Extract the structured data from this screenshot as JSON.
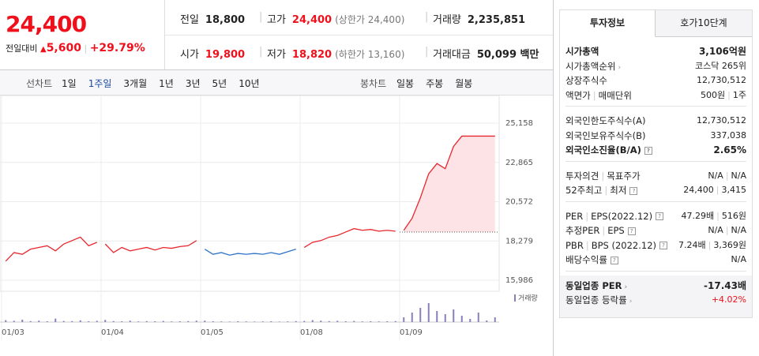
{
  "quote": {
    "price": "24,400",
    "change_label": "전일대비",
    "change": "5,600",
    "rate": "+29.79%"
  },
  "summary": [
    [
      {
        "label": "전일",
        "value": "18,800"
      },
      {
        "label": "고가",
        "value": "24,400",
        "note": "(상한가 24,400)"
      },
      {
        "label": "거래량",
        "value": "2,235,851"
      }
    ],
    [
      {
        "label": "시가",
        "value": "19,800"
      },
      {
        "label": "저가",
        "value": "18,820",
        "note": "(하한가 13,160)"
      },
      {
        "label": "거래대금",
        "value": "50,099 백만"
      }
    ]
  ],
  "periods": {
    "line_label": "선차트",
    "line": [
      "1일",
      "1주일",
      "3개월",
      "1년",
      "3년",
      "5년",
      "10년"
    ],
    "line_selected": 1,
    "candle_label": "봉차트",
    "candle": [
      "일봉",
      "주봉",
      "월봉"
    ]
  },
  "chart_data": {
    "type": "line",
    "x": [
      "01/03",
      "01/04",
      "01/05",
      "01/08",
      "01/09"
    ],
    "segments": [
      {
        "color": "#e8262d",
        "values": [
          17100,
          17600,
          17500,
          17800,
          17900,
          18000,
          17700,
          18100,
          18300,
          18500,
          18000,
          18200
        ]
      },
      {
        "color": "#e8262d",
        "values": [
          18100,
          17600,
          17900,
          17700,
          17800,
          17900,
          17750,
          17900,
          17850,
          17950,
          18000,
          18300
        ]
      },
      {
        "color": "#2f74c9",
        "values": [
          17800,
          17500,
          17600,
          17450,
          17550,
          17500,
          17550,
          17500,
          17600,
          17500,
          17650,
          17800
        ]
      },
      {
        "color": "#e8262d",
        "values": [
          17900,
          18200,
          18300,
          18500,
          18600,
          18800,
          19000,
          18900,
          18950,
          18850,
          18900,
          18850
        ]
      },
      {
        "color": "#e8262d",
        "values": [
          18900,
          19600,
          20800,
          22200,
          22800,
          22500,
          23800,
          24400,
          24400,
          24400,
          24400,
          24400
        ]
      }
    ],
    "reference": 18800,
    "fill_color": "#fde3e5",
    "ylim": [
      15986,
      25158
    ],
    "yticks": [
      {
        "value": 25158,
        "label": "25,158"
      },
      {
        "value": 22865,
        "label": "22,865"
      },
      {
        "value": 20572,
        "label": "20,572"
      },
      {
        "value": 18279,
        "label": "18,279"
      },
      {
        "value": 15986,
        "label": "15,986"
      }
    ],
    "grid": true,
    "volume": {
      "name": "거래량",
      "color": "#8a7fb8",
      "vlim": [
        0,
        200000
      ],
      "values": [
        [
          12000,
          8000,
          15000,
          6000,
          9000,
          5000,
          22000,
          7000,
          6000,
          11000,
          5000,
          8000
        ],
        [
          14000,
          6000,
          5000,
          9000,
          4000,
          6000,
          5000,
          7000,
          4000,
          5000,
          6000,
          9000
        ],
        [
          9000,
          5000,
          4000,
          3000,
          5000,
          4000,
          3000,
          4000,
          5000,
          3000,
          4000,
          6000
        ],
        [
          7000,
          12000,
          9000,
          6000,
          8000,
          5000,
          7000,
          4000,
          5000,
          4000,
          5000,
          6000
        ],
        [
          30000,
          60000,
          90000,
          120000,
          70000,
          50000,
          80000,
          40000,
          20000,
          60000,
          10000,
          30000
        ]
      ]
    }
  },
  "info": {
    "tabs": [
      "투자정보",
      "호가10단계"
    ],
    "groups": [
      [
        {
          "labels": [
            "시가총액"
          ],
          "values": [
            "3,106억원"
          ],
          "style": "bold"
        },
        {
          "labels": [
            "시가총액순위"
          ],
          "values": [
            "코스닥 265위"
          ],
          "arrow": true
        },
        {
          "labels": [
            "상장주식수"
          ],
          "values": [
            "12,730,512"
          ]
        },
        {
          "labels": [
            "액면가",
            "매매단위"
          ],
          "values": [
            "500원",
            "1주"
          ]
        }
      ],
      [
        {
          "labels": [
            "외국인한도주식수(A)"
          ],
          "values": [
            "12,730,512"
          ]
        },
        {
          "labels": [
            "외국인보유주식수(B)"
          ],
          "values": [
            "337,038"
          ]
        },
        {
          "labels": [
            "외국인소진율(B/A)"
          ],
          "values": [
            "2.65%"
          ],
          "style": "bold",
          "help": true
        }
      ],
      [
        {
          "labels": [
            "투자의견",
            "목표주가"
          ],
          "values": [
            "N/A",
            "N/A"
          ]
        },
        {
          "labels": [
            "52주최고",
            "최저"
          ],
          "values": [
            "24,400",
            "3,415"
          ],
          "help": true
        }
      ],
      [
        {
          "labels": [
            "PER",
            "EPS(2022.12)"
          ],
          "values": [
            "47.29배",
            "516원"
          ],
          "help": true
        },
        {
          "labels": [
            "추정PER",
            "EPS"
          ],
          "values": [
            "N/A",
            "N/A"
          ],
          "help": true
        },
        {
          "labels": [
            "PBR",
            "BPS (2022.12)"
          ],
          "values": [
            "7.24배",
            "3,369원"
          ],
          "help": true
        },
        {
          "labels": [
            "배당수익률"
          ],
          "values": [
            "N/A"
          ],
          "help": true
        }
      ],
      [
        {
          "labels": [
            "동일업종 PER"
          ],
          "values": [
            "-17.43배"
          ],
          "style": "bold",
          "arrow": true
        },
        {
          "labels": [
            "동일업종 등락률"
          ],
          "values": [
            "+4.02%"
          ],
          "style": "red",
          "arrow": true
        }
      ]
    ]
  }
}
